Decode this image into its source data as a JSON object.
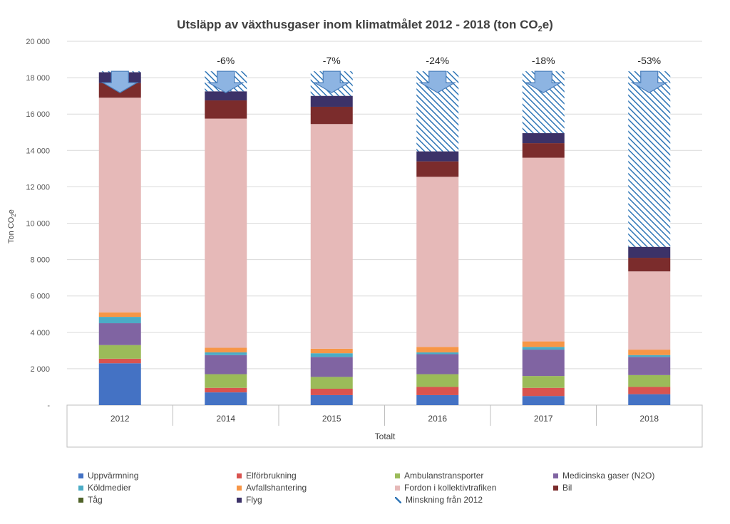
{
  "chart_data": {
    "type": "bar",
    "stacked": true,
    "title_main": "Utsläpp av växthusgaser inom klimatmålet 2012 - 2018 (ton CO",
    "title_sub": "2",
    "title_tail": "e)",
    "ylabel_main": "Ton CO",
    "ylabel_sub": "2",
    "ylabel_tail": "e",
    "xlabel": "Totalt",
    "ylim": [
      0,
      20000
    ],
    "yticks": [
      0,
      2000,
      4000,
      6000,
      8000,
      10000,
      12000,
      14000,
      16000,
      18000,
      20000
    ],
    "ytick_labels": [
      "-",
      "2 000",
      "4 000",
      "6 000",
      "8 000",
      "10 000",
      "12 000",
      "14 000",
      "16 000",
      "18 000",
      "20 000"
    ],
    "categories": [
      "2012",
      "2014",
      "2015",
      "2016",
      "2017",
      "2018"
    ],
    "baseline_total": 18350,
    "series": [
      {
        "name": "Uppvärmning",
        "color": "#4472C4",
        "values": [
          2300,
          700,
          550,
          550,
          500,
          600
        ]
      },
      {
        "name": "Elförbrukning",
        "color": "#D9534F",
        "values": [
          250,
          250,
          350,
          450,
          450,
          400
        ]
      },
      {
        "name": "Ambulanstransporter",
        "color": "#9BBB59",
        "values": [
          750,
          750,
          650,
          700,
          650,
          650
        ]
      },
      {
        "name": "Medicinska gaser (N2O)",
        "color": "#8064A2",
        "values": [
          1200,
          1050,
          1100,
          1100,
          1450,
          1000
        ]
      },
      {
        "name": "Köldmedier",
        "color": "#4BACC6",
        "values": [
          350,
          150,
          200,
          100,
          150,
          100
        ]
      },
      {
        "name": "Avfallshantering",
        "color": "#F79646",
        "values": [
          250,
          250,
          250,
          300,
          300,
          300
        ]
      },
      {
        "name": "Fordon i kollektivtrafiken",
        "color": "#E6B9B8",
        "values": [
          11800,
          12600,
          12350,
          9350,
          10100,
          4300
        ]
      },
      {
        "name": "Bil",
        "color": "#7B2C2C",
        "values": [
          800,
          1000,
          950,
          850,
          800,
          750
        ]
      },
      {
        "name": "Tåg",
        "color": "#4F6228",
        "values": [
          0,
          0,
          0,
          0,
          0,
          0
        ]
      },
      {
        "name": "Flyg",
        "color": "#3C3268",
        "values": [
          600,
          500,
          600,
          550,
          550,
          600
        ]
      }
    ],
    "reduction": {
      "name": "Minskning från 2012",
      "color": "#2E75B6",
      "labels": [
        "",
        "-6%",
        "-7%",
        "-24%",
        "-18%",
        "-53%"
      ]
    },
    "legend_order": [
      "Uppvärmning",
      "Elförbrukning",
      "Ambulanstransporter",
      "Medicinska gaser (N2O)",
      "Köldmedier",
      "Avfallshantering",
      "Fordon i kollektivtrafiken",
      "Bil",
      "Tåg",
      "Flyg",
      "Minskning från 2012"
    ],
    "arrow_color": "#8DB4E2",
    "arrow_edge": "#4A7EBB",
    "grid": true
  }
}
